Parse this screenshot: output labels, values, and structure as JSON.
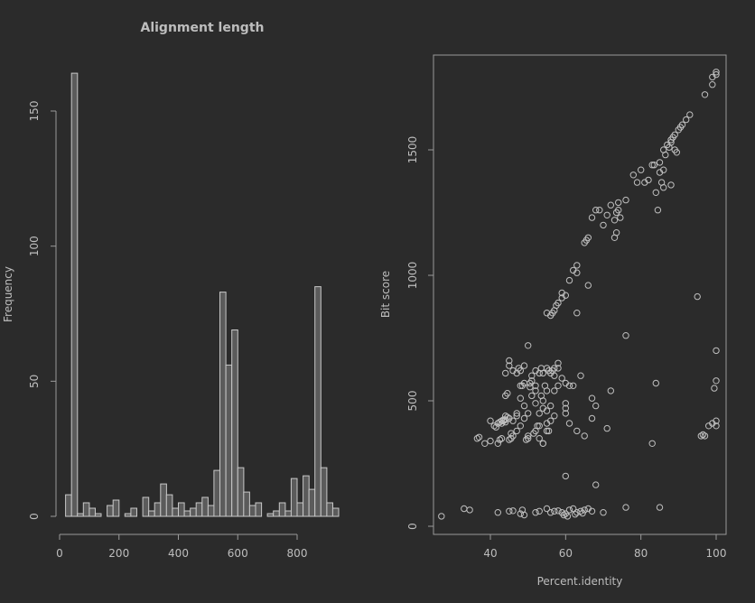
{
  "chart_data": [
    {
      "type": "bar",
      "subtype": "histogram",
      "title": "Alignment length",
      "xlabel": "",
      "ylabel": "Frequency",
      "xlim": [
        0,
        940
      ],
      "ylim": [
        0,
        160
      ],
      "x_ticks": [
        0,
        200,
        400,
        600,
        800
      ],
      "y_ticks": [
        0,
        50,
        100,
        150
      ],
      "bin_width": 20,
      "bin_start": 20,
      "values": [
        8,
        164,
        1,
        5,
        3,
        1,
        0,
        4,
        6,
        0,
        1,
        3,
        0,
        7,
        2,
        5,
        12,
        8,
        3,
        5,
        2,
        3,
        5,
        7,
        4,
        17,
        83,
        56,
        69,
        18,
        9,
        4,
        5,
        0,
        1,
        2,
        5,
        2,
        14,
        5,
        15,
        10,
        85,
        18,
        5,
        3
      ],
      "grid": false
    },
    {
      "type": "scatter",
      "title": "",
      "xlabel": "Percent.identity",
      "ylabel": "Bit score",
      "xlim": [
        25,
        103
      ],
      "ylim": [
        -25,
        1880
      ],
      "x_ticks": [
        40,
        60,
        80,
        100
      ],
      "y_ticks": [
        0,
        500,
        1000,
        1500
      ],
      "grid": false,
      "points": [
        [
          27,
          40
        ],
        [
          33,
          70
        ],
        [
          34.5,
          65
        ],
        [
          42,
          55
        ],
        [
          45,
          60
        ],
        [
          46,
          62
        ],
        [
          48,
          50
        ],
        [
          48.5,
          65
        ],
        [
          49,
          45
        ],
        [
          52,
          55
        ],
        [
          53,
          60
        ],
        [
          55,
          70
        ],
        [
          56,
          55
        ],
        [
          57,
          60
        ],
        [
          58,
          62
        ],
        [
          59,
          55
        ],
        [
          60,
          50
        ],
        [
          61,
          65
        ],
        [
          62,
          70
        ],
        [
          63,
          55
        ],
        [
          64,
          60
        ],
        [
          65,
          65
        ],
        [
          66,
          70
        ],
        [
          67,
          60
        ],
        [
          70,
          55
        ],
        [
          76,
          75
        ],
        [
          85,
          75
        ],
        [
          59.5,
          45
        ],
        [
          60.5,
          40
        ],
        [
          62.5,
          48
        ],
        [
          64.5,
          52
        ],
        [
          36.5,
          350
        ],
        [
          37,
          355
        ],
        [
          38.5,
          330
        ],
        [
          40,
          340
        ],
        [
          40,
          420
        ],
        [
          41,
          400
        ],
        [
          41.5,
          395
        ],
        [
          42,
          410
        ],
        [
          42,
          330
        ],
        [
          42.5,
          345
        ],
        [
          43,
          350
        ],
        [
          43,
          410
        ],
        [
          43.5,
          420
        ],
        [
          44,
          415
        ],
        [
          44,
          440
        ],
        [
          44,
          520
        ],
        [
          44.5,
          530
        ],
        [
          45,
          345
        ],
        [
          45.5,
          350
        ],
        [
          45.5,
          370
        ],
        [
          46,
          360
        ],
        [
          46,
          420
        ],
        [
          47,
          380
        ],
        [
          47,
          440
        ],
        [
          47,
          450
        ],
        [
          48,
          510
        ],
        [
          48,
          560
        ],
        [
          48.5,
          560
        ],
        [
          49,
          430
        ],
        [
          49,
          570
        ],
        [
          49.5,
          345
        ],
        [
          50,
          350
        ],
        [
          50,
          360
        ],
        [
          50.5,
          555
        ],
        [
          50.5,
          570
        ],
        [
          51,
          520
        ],
        [
          51,
          580
        ],
        [
          51.5,
          370
        ],
        [
          52,
          380
        ],
        [
          52,
          540
        ],
        [
          52,
          560
        ],
        [
          52.5,
          400
        ],
        [
          53,
          350
        ],
        [
          53,
          400
        ],
        [
          53.5,
          520
        ],
        [
          54,
          330
        ],
        [
          54,
          330
        ],
        [
          54,
          470
        ],
        [
          54,
          500
        ],
        [
          54.5,
          560
        ],
        [
          55,
          380
        ],
        [
          55,
          410
        ],
        [
          55,
          540
        ],
        [
          55.5,
          380
        ],
        [
          56,
          420
        ],
        [
          57,
          440
        ],
        [
          57,
          540
        ],
        [
          58,
          560
        ],
        [
          58,
          650
        ],
        [
          59,
          590
        ],
        [
          60,
          450
        ],
        [
          60,
          470
        ],
        [
          60,
          490
        ],
        [
          60,
          570
        ],
        [
          60,
          200
        ],
        [
          61,
          410
        ],
        [
          61,
          560
        ],
        [
          62,
          560
        ],
        [
          63,
          380
        ],
        [
          64,
          600
        ],
        [
          65,
          360
        ],
        [
          67,
          430
        ],
        [
          67,
          510
        ],
        [
          68,
          165
        ],
        [
          68,
          480
        ],
        [
          71,
          390
        ],
        [
          72,
          540
        ],
        [
          48,
          400
        ],
        [
          49,
          480
        ],
        [
          50,
          450
        ],
        [
          52,
          490
        ],
        [
          53,
          450
        ],
        [
          55,
          460
        ],
        [
          56,
          480
        ],
        [
          44,
          610
        ],
        [
          45,
          640
        ],
        [
          45,
          660
        ],
        [
          46,
          620
        ],
        [
          47,
          610
        ],
        [
          47.5,
          630
        ],
        [
          48,
          620
        ],
        [
          49,
          640
        ],
        [
          50,
          720
        ],
        [
          51,
          600
        ],
        [
          52,
          620
        ],
        [
          53,
          610
        ],
        [
          53.5,
          630
        ],
        [
          54,
          610
        ],
        [
          55,
          630
        ],
        [
          55.5,
          620
        ],
        [
          56,
          610
        ],
        [
          56.5,
          620
        ],
        [
          57,
          630
        ],
        [
          57,
          600
        ],
        [
          58,
          630
        ],
        [
          43,
          420
        ],
        [
          43.5,
          425
        ],
        [
          42.5,
          415
        ],
        [
          44,
          425
        ],
        [
          45,
          430
        ],
        [
          44.5,
          435
        ],
        [
          55,
          850
        ],
        [
          56,
          840
        ],
        [
          56.5,
          850
        ],
        [
          57,
          860
        ],
        [
          57.5,
          880
        ],
        [
          58,
          890
        ],
        [
          59,
          910
        ],
        [
          59,
          930
        ],
        [
          60,
          920
        ],
        [
          61,
          980
        ],
        [
          62,
          1020
        ],
        [
          63,
          1010
        ],
        [
          63,
          1040
        ],
        [
          63,
          850
        ],
        [
          65,
          1130
        ],
        [
          65.5,
          1140
        ],
        [
          66,
          1150
        ],
        [
          66,
          960
        ],
        [
          67,
          1230
        ],
        [
          68,
          1260
        ],
        [
          69,
          1260
        ],
        [
          70,
          1200
        ],
        [
          71,
          1240
        ],
        [
          72,
          1280
        ],
        [
          73,
          1220
        ],
        [
          73.5,
          1250
        ],
        [
          74,
          1260
        ],
        [
          74,
          1290
        ],
        [
          74.5,
          1230
        ],
        [
          73,
          1150
        ],
        [
          73.5,
          1170
        ],
        [
          76,
          1300
        ],
        [
          76,
          760
        ],
        [
          78,
          1400
        ],
        [
          79,
          1370
        ],
        [
          80,
          1420
        ],
        [
          81,
          1370
        ],
        [
          82,
          1380
        ],
        [
          83,
          1440
        ],
        [
          83.5,
          1440
        ],
        [
          84,
          1330
        ],
        [
          84.5,
          1260
        ],
        [
          85,
          1410
        ],
        [
          85,
          1450
        ],
        [
          85.5,
          1370
        ],
        [
          86,
          1350
        ],
        [
          86,
          1420
        ],
        [
          86,
          1500
        ],
        [
          86.5,
          1480
        ],
        [
          87,
          1520
        ],
        [
          87.5,
          1510
        ],
        [
          88,
          1530
        ],
        [
          88,
          1540
        ],
        [
          88.5,
          1550
        ],
        [
          89,
          1500
        ],
        [
          89.5,
          1490
        ],
        [
          88,
          1360
        ],
        [
          89,
          1560
        ],
        [
          90,
          1580
        ],
        [
          90.5,
          1590
        ],
        [
          91,
          1600
        ],
        [
          92,
          1620
        ],
        [
          93,
          1640
        ],
        [
          95,
          915
        ],
        [
          84,
          570
        ],
        [
          83,
          330
        ],
        [
          97,
          1720
        ],
        [
          99,
          1760
        ],
        [
          99,
          1790
        ],
        [
          100,
          1800
        ],
        [
          100,
          1810
        ],
        [
          96,
          360
        ],
        [
          96.5,
          365
        ],
        [
          98,
          400
        ],
        [
          99,
          410
        ],
        [
          100,
          420
        ],
        [
          100,
          400
        ],
        [
          99.5,
          550
        ],
        [
          100,
          580
        ],
        [
          100,
          700
        ],
        [
          97,
          360
        ]
      ]
    }
  ]
}
